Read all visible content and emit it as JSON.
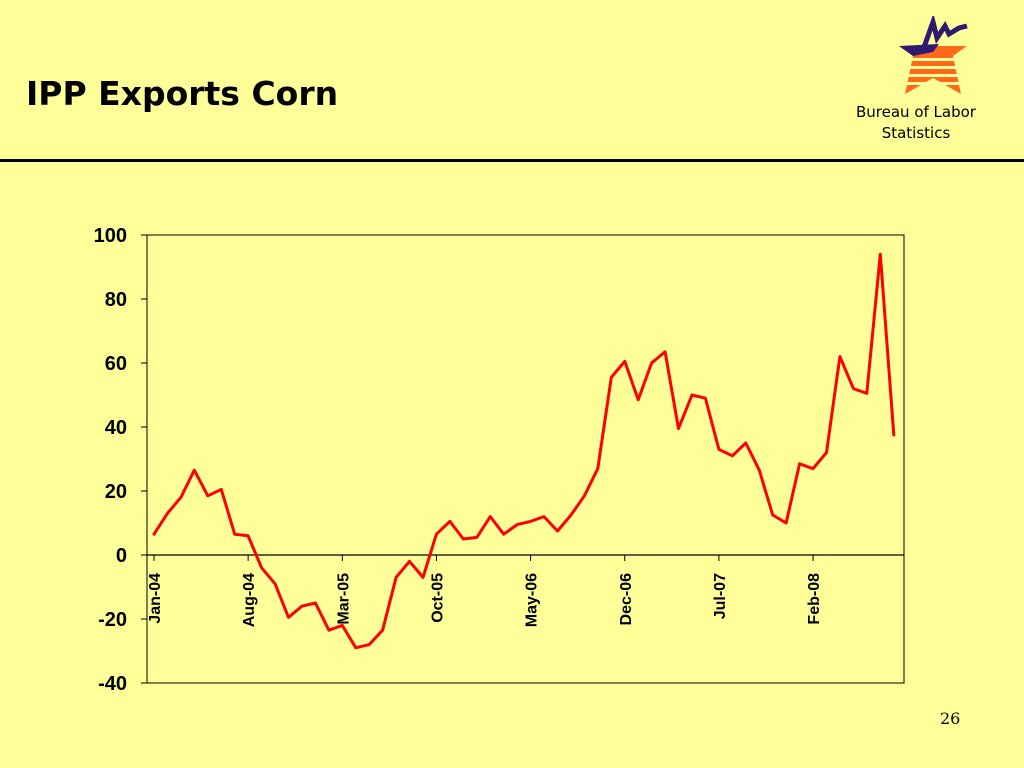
{
  "slide": {
    "title": "IPP Exports Corn",
    "org_line1": "Bureau of Labor",
    "org_line2": "Statistics",
    "page_number": "26"
  },
  "colors": {
    "background": "#ffff99",
    "series_line": "#ff0000",
    "logo_navy": "#2e1a6e",
    "logo_orange": "#ff6a1a"
  },
  "logo": {
    "icon": "bls-star-logo"
  },
  "chart_data": {
    "type": "line",
    "title": "",
    "xlabel": "",
    "ylabel": "",
    "ylim": [
      -40,
      100
    ],
    "yticks": [
      "100",
      "80",
      "60",
      "40",
      "20",
      "0",
      "-20",
      "-40"
    ],
    "ytick_values": [
      100,
      80,
      60,
      40,
      20,
      0,
      -20,
      -40
    ],
    "grid": false,
    "legend": "none",
    "x_tick_labels": [
      "Jan-04",
      "Aug-04",
      "Mar-05",
      "Oct-05",
      "May-06",
      "Dec-06",
      "Jul-07",
      "Feb-08"
    ],
    "x_tick_positions": [
      "2004-01",
      "2004-08",
      "2005-03",
      "2005-10",
      "2006-05",
      "2006-12",
      "2007-07",
      "2008-02"
    ],
    "x": [
      "2004-01",
      "2004-02",
      "2004-03",
      "2004-04",
      "2004-05",
      "2004-06",
      "2004-07",
      "2004-08",
      "2004-09",
      "2004-10",
      "2004-11",
      "2004-12",
      "2005-01",
      "2005-02",
      "2005-03",
      "2005-04",
      "2005-05",
      "2005-06",
      "2005-07",
      "2005-08",
      "2005-09",
      "2005-10",
      "2005-11",
      "2005-12",
      "2006-01",
      "2006-02",
      "2006-03",
      "2006-04",
      "2006-05",
      "2006-06",
      "2006-07",
      "2006-08",
      "2006-09",
      "2006-10",
      "2006-11",
      "2006-12",
      "2007-01",
      "2007-02",
      "2007-03",
      "2007-04",
      "2007-05",
      "2007-06",
      "2007-07",
      "2007-08",
      "2007-09",
      "2007-10",
      "2007-11",
      "2007-12",
      "2008-01",
      "2008-02",
      "2008-03",
      "2008-04",
      "2008-05",
      "2008-06",
      "2008-07",
      "2008-08"
    ],
    "series": [
      {
        "values": [
          6.5,
          13,
          18,
          26.5,
          18.5,
          20.5,
          6.5,
          6,
          -4,
          -9,
          -19.5,
          -16,
          -15,
          -23.5,
          -22,
          -29,
          -28,
          -23.5,
          -7,
          -2,
          -7,
          6.5,
          10.5,
          5,
          5.5,
          12,
          6.5,
          9.5,
          10.5,
          12,
          7.5,
          12.5,
          18.5,
          27,
          55.5,
          60.5,
          48.5,
          60,
          63.5,
          39.5,
          50,
          49,
          33,
          31,
          35,
          26.5,
          12.5,
          10,
          28.5,
          27,
          32,
          62,
          52,
          50.5,
          94,
          37.5
        ]
      }
    ]
  }
}
